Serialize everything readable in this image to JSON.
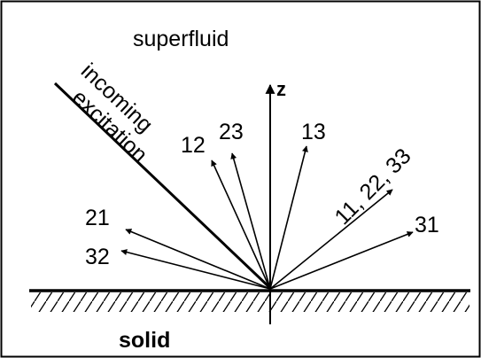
{
  "regions": {
    "top": "superfluid",
    "bottom": "solid"
  },
  "incoming": {
    "line1": "incoming",
    "line2": "excitation"
  },
  "axis": {
    "label": "z"
  },
  "arrows": {
    "a12": "12",
    "a23": "23",
    "a13": "13",
    "a112233": "11, 22, 33",
    "a31": "31",
    "a21": "21",
    "a32": "32"
  }
}
